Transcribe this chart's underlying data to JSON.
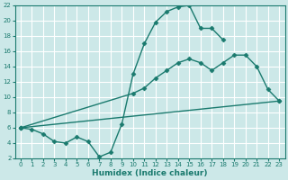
{
  "title": "",
  "xlabel": "Humidex (Indice chaleur)",
  "background_color": "#cce8e8",
  "grid_color": "#ffffff",
  "line_color": "#1a7a6e",
  "xlim": [
    -0.5,
    23.5
  ],
  "ylim": [
    2,
    22
  ],
  "xticks": [
    0,
    1,
    2,
    3,
    4,
    5,
    6,
    7,
    8,
    9,
    10,
    11,
    12,
    13,
    14,
    15,
    16,
    17,
    18,
    19,
    20,
    21,
    22,
    23
  ],
  "yticks": [
    2,
    4,
    6,
    8,
    10,
    12,
    14,
    16,
    18,
    20,
    22
  ],
  "line1_x": [
    0,
    1,
    2,
    3,
    4,
    5,
    6,
    7,
    8,
    9,
    10,
    11,
    12,
    13,
    14,
    15,
    16,
    17,
    18
  ],
  "line1_y": [
    6.0,
    5.8,
    5.2,
    4.2,
    4.0,
    4.8,
    4.2,
    2.2,
    2.8,
    6.5,
    13.0,
    17.0,
    19.8,
    21.2,
    21.8,
    22.0,
    19.0,
    19.0,
    17.5
  ],
  "line2_x": [
    0,
    23
  ],
  "line2_y": [
    6.0,
    9.5
  ],
  "line3_x": [
    0,
    10,
    11,
    12,
    13,
    14,
    15,
    16,
    17,
    18,
    19,
    20,
    21,
    22,
    23
  ],
  "line3_y": [
    6.0,
    10.5,
    11.2,
    12.5,
    13.5,
    14.5,
    15.0,
    14.5,
    13.5,
    14.5,
    15.5,
    15.5,
    14.0,
    11.0,
    9.5
  ],
  "marker": "D",
  "marker_size": 2.5,
  "line_width": 1.0,
  "tick_fontsize": 5.0,
  "xlabel_fontsize": 6.5
}
